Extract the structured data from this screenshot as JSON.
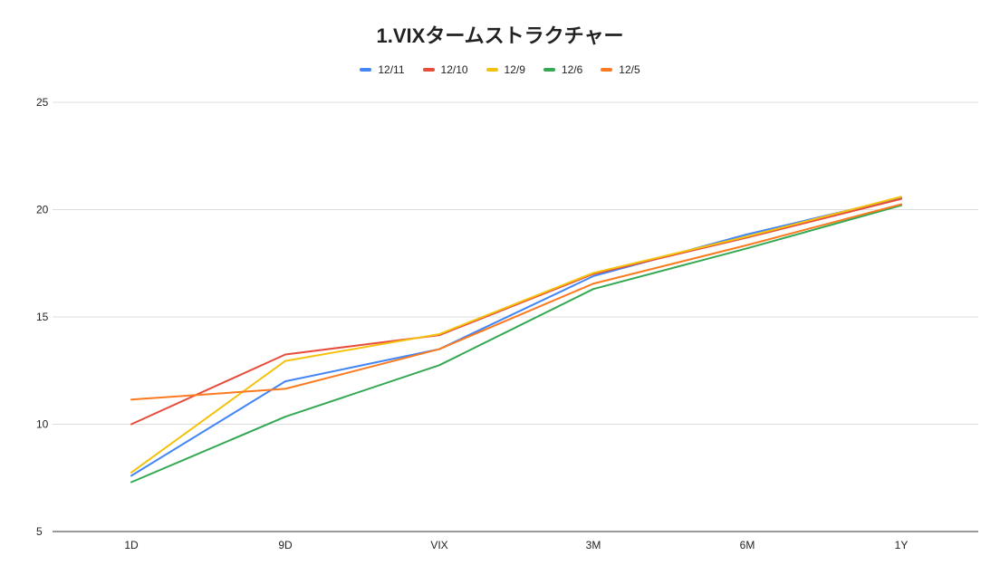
{
  "chart_data": {
    "type": "line",
    "title": "1.VIXタームストラクチャー",
    "xlabel": "",
    "ylabel": "",
    "categories": [
      "1D",
      "9D",
      "VIX",
      "3M",
      "6M",
      "1Y"
    ],
    "ylim": [
      5,
      25
    ],
    "yticks": [
      5,
      10,
      15,
      20,
      25
    ],
    "grid": true,
    "legend_position": "top",
    "series": [
      {
        "name": "12/11",
        "color": "#4285f4",
        "values": [
          7.6,
          12.0,
          13.5,
          16.9,
          18.85,
          20.55
        ]
      },
      {
        "name": "12/10",
        "color": "#e74c3c",
        "values": [
          10.0,
          13.25,
          14.15,
          17.0,
          18.7,
          20.5
        ]
      },
      {
        "name": "12/9",
        "color": "#f4c20d",
        "values": [
          7.75,
          12.95,
          14.2,
          17.05,
          18.75,
          20.6
        ]
      },
      {
        "name": "12/6",
        "color": "#34a853",
        "values": [
          7.3,
          10.35,
          12.75,
          16.3,
          18.2,
          20.2
        ]
      },
      {
        "name": "12/5",
        "color": "#fb7a1f",
        "values": [
          11.15,
          11.65,
          13.5,
          16.55,
          18.35,
          20.25
        ]
      }
    ]
  }
}
